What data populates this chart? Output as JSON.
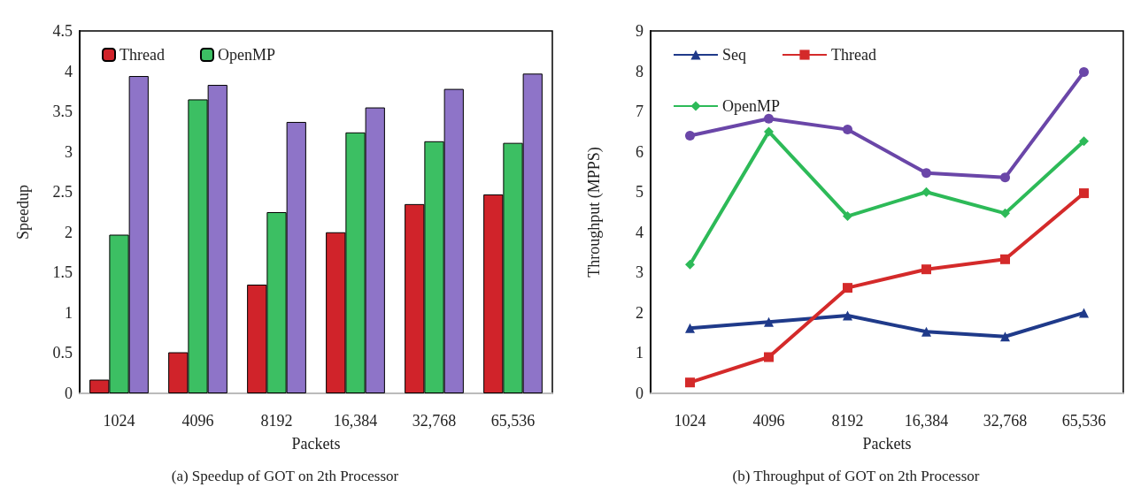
{
  "chart_data": [
    {
      "type": "bar",
      "title": "(a) Speedup of GOT on 2th Processor",
      "xlabel": "Packets",
      "ylabel": "Speedup",
      "categories": [
        "1024",
        "4096",
        "8192",
        "16,384",
        "32,768",
        "65,536"
      ],
      "series": [
        {
          "name": "Thread",
          "color": "#d0232a",
          "values": [
            0.17,
            0.51,
            1.35,
            2.0,
            2.35,
            2.47
          ]
        },
        {
          "name": "OpenMP",
          "color": "#3cbf63",
          "values": [
            1.97,
            3.65,
            2.25,
            3.24,
            3.13,
            3.11
          ]
        },
        {
          "color": "#8e74c8",
          "values": [
            3.94,
            3.83,
            3.37,
            3.55,
            3.78,
            3.97
          ]
        }
      ],
      "ylim": [
        0,
        4.5
      ],
      "yticks": [
        0,
        0.5,
        1,
        1.5,
        2,
        2.5,
        3,
        3.5,
        4,
        4.5
      ],
      "grid": false,
      "legend": "top left"
    },
    {
      "type": "line",
      "title": "(b) Throughput of GOT on 2th Processor",
      "xlabel": "Packets",
      "ylabel": "Throughput (MPPS)",
      "categories": [
        "1024",
        "4096",
        "8192",
        "16,384",
        "32,768",
        "65,536"
      ],
      "series": [
        {
          "name": "Seq",
          "color": "#1f3a8a",
          "marker": "triangle",
          "values": [
            1.62,
            1.77,
            1.93,
            1.53,
            1.41,
            2.0
          ]
        },
        {
          "name": "Thread",
          "color": "#d42a2a",
          "marker": "square",
          "values": [
            0.27,
            0.9,
            2.62,
            3.08,
            3.33,
            4.97
          ]
        },
        {
          "name": "OpenMP",
          "color": "#2dba58",
          "marker": "diamond",
          "values": [
            3.2,
            6.5,
            4.4,
            5.0,
            4.47,
            6.26
          ]
        },
        {
          "color": "#6a46a8",
          "marker": "circle",
          "values": [
            6.4,
            6.82,
            6.55,
            5.47,
            5.36,
            7.98
          ]
        }
      ],
      "ylim": [
        0,
        9
      ],
      "yticks": [
        0,
        1,
        2,
        3,
        4,
        5,
        6,
        7,
        8,
        9
      ],
      "grid": false,
      "legend": "top left",
      "line_style": "solid"
    }
  ]
}
